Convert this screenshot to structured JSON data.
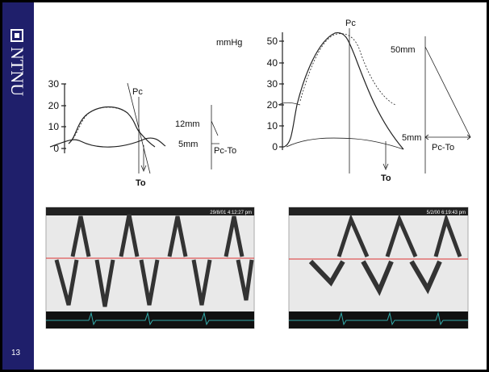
{
  "sidebar": {
    "logo": "NTNU",
    "page_number": "13"
  },
  "left_diagram": {
    "y_ticks": [
      "30",
      "20",
      "10",
      "0"
    ],
    "pc": "Pc",
    "to": "To",
    "scale_top": "12mm",
    "scale_bottom": "5mm",
    "scale_label": "Pc-To"
  },
  "right_diagram": {
    "unit": "mmHg",
    "y_ticks": [
      "50",
      "40",
      "30",
      "20",
      "10",
      "0"
    ],
    "pc": "Pc",
    "to": "To",
    "scale_top": "50mm",
    "scale_bottom": "5mm",
    "scale_label": "Pc-To"
  },
  "doppler_left": {
    "timestamp": "29/8/01 4:12:27 pm"
  },
  "doppler_right": {
    "timestamp": "5/2/00 6:19:43 pm"
  }
}
